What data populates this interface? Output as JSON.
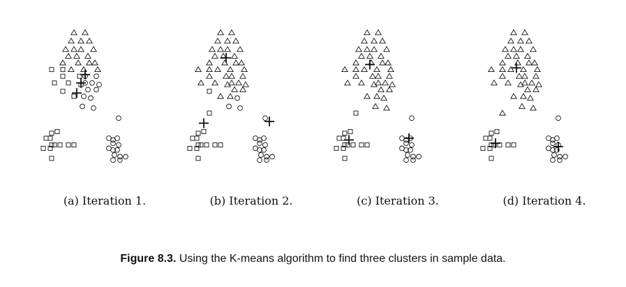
{
  "figure": {
    "caption_label": "Figure 8.3.",
    "caption_text": "Using the K-means algorithm to find three clusters in sample data.",
    "colors": {
      "ink": "#111111",
      "background": "#ffffff"
    }
  },
  "chart_data": [
    {
      "type": "scatter",
      "title": "(a) Iteration 1.",
      "xlim": [
        0,
        100
      ],
      "ylim": [
        0,
        100
      ],
      "grid": false,
      "axes_visible": false,
      "series": [
        {
          "marker": "triangle",
          "values": [
            [
              28,
              93
            ],
            [
              36,
              93
            ],
            [
              26,
              88
            ],
            [
              33,
              88
            ],
            [
              39,
              88
            ],
            [
              22,
              83
            ],
            [
              28,
              83
            ],
            [
              33,
              83
            ],
            [
              42,
              83
            ],
            [
              24,
              79
            ],
            [
              30,
              79
            ],
            [
              38,
              79
            ],
            [
              20,
              75
            ],
            [
              31,
              75
            ],
            [
              39,
              75
            ],
            [
              43,
              75
            ],
            [
              26,
              71
            ],
            [
              35,
              71
            ],
            [
              45,
              71
            ]
          ]
        },
        {
          "marker": "square",
          "values": [
            [
              12,
              71
            ],
            [
              20,
              71
            ],
            [
              20,
              67
            ],
            [
              32,
              67
            ],
            [
              14,
              63
            ],
            [
              24,
              63
            ],
            [
              33,
              62
            ],
            [
              20,
              58
            ],
            [
              28,
              55
            ],
            [
              12,
              33
            ],
            [
              16,
              34
            ],
            [
              8,
              30
            ],
            [
              11,
              30
            ],
            [
              12,
              26
            ],
            [
              18,
              26
            ],
            [
              24,
              26
            ],
            [
              28,
              26
            ],
            [
              6,
              24
            ],
            [
              11,
              24
            ],
            [
              14,
              26
            ],
            [
              12,
              18
            ]
          ]
        },
        {
          "marker": "circle",
          "values": [
            [
              36,
              67
            ],
            [
              44,
              67
            ],
            [
              36,
              63
            ],
            [
              41,
              63
            ],
            [
              46,
              62
            ],
            [
              38,
              59
            ],
            [
              44,
              59
            ],
            [
              35,
              55
            ],
            [
              40,
              54
            ],
            [
              34,
              49
            ],
            [
              42,
              48
            ],
            [
              60,
              42
            ],
            [
              53,
              30
            ],
            [
              56,
              29
            ],
            [
              59,
              30
            ],
            [
              56,
              27
            ],
            [
              60,
              26
            ],
            [
              53,
              24
            ],
            [
              56,
              23
            ],
            [
              59,
              23
            ],
            [
              57,
              20
            ],
            [
              61,
              19
            ],
            [
              65,
              19
            ],
            [
              56,
              17
            ],
            [
              61,
              17
            ]
          ]
        }
      ],
      "centroids": [
        [
          36,
          68
        ],
        [
          33,
          63
        ],
        [
          30,
          57
        ]
      ]
    },
    {
      "type": "scatter",
      "title": "(b) Iteration 2.",
      "xlim": [
        0,
        100
      ],
      "ylim": [
        0,
        100
      ],
      "grid": false,
      "axes_visible": false,
      "series": [
        {
          "marker": "triangle",
          "values": [
            [
              28,
              93
            ],
            [
              36,
              93
            ],
            [
              26,
              88
            ],
            [
              33,
              88
            ],
            [
              39,
              88
            ],
            [
              22,
              83
            ],
            [
              28,
              83
            ],
            [
              33,
              83
            ],
            [
              42,
              83
            ],
            [
              24,
              79
            ],
            [
              30,
              79
            ],
            [
              38,
              79
            ],
            [
              20,
              75
            ],
            [
              31,
              75
            ],
            [
              39,
              75
            ],
            [
              43,
              75
            ],
            [
              26,
              71
            ],
            [
              35,
              71
            ],
            [
              45,
              71
            ],
            [
              12,
              71
            ],
            [
              20,
              71
            ],
            [
              20,
              67
            ],
            [
              32,
              67
            ],
            [
              24,
              63
            ],
            [
              33,
              62
            ],
            [
              36,
              67
            ],
            [
              44,
              67
            ],
            [
              36,
              63
            ],
            [
              41,
              63
            ],
            [
              46,
              62
            ],
            [
              38,
              59
            ],
            [
              44,
              59
            ],
            [
              35,
              55
            ],
            [
              28,
              55
            ],
            [
              14,
              63
            ]
          ]
        },
        {
          "marker": "square",
          "values": [
            [
              20,
              58
            ],
            [
              20,
              45
            ],
            [
              12,
              33
            ],
            [
              16,
              34
            ],
            [
              8,
              30
            ],
            [
              11,
              30
            ],
            [
              12,
              26
            ],
            [
              18,
              26
            ],
            [
              24,
              26
            ],
            [
              28,
              26
            ],
            [
              6,
              24
            ],
            [
              11,
              24
            ],
            [
              14,
              26
            ],
            [
              12,
              18
            ]
          ]
        },
        {
          "marker": "circle",
          "values": [
            [
              40,
              54
            ],
            [
              34,
              49
            ],
            [
              42,
              48
            ],
            [
              60,
              42
            ],
            [
              53,
              30
            ],
            [
              56,
              29
            ],
            [
              59,
              30
            ],
            [
              56,
              27
            ],
            [
              60,
              26
            ],
            [
              53,
              24
            ],
            [
              56,
              23
            ],
            [
              59,
              23
            ],
            [
              57,
              20
            ],
            [
              61,
              19
            ],
            [
              65,
              19
            ],
            [
              56,
              17
            ],
            [
              61,
              17
            ]
          ]
        }
      ],
      "centroids": [
        [
          32,
          78
        ],
        [
          16,
          39
        ],
        [
          63,
          40
        ]
      ]
    },
    {
      "type": "scatter",
      "title": "(c) Iteration 3.",
      "xlim": [
        0,
        100
      ],
      "ylim": [
        0,
        100
      ],
      "grid": false,
      "axes_visible": false,
      "series": [
        {
          "marker": "triangle",
          "values": [
            [
              28,
              93
            ],
            [
              36,
              93
            ],
            [
              26,
              88
            ],
            [
              33,
              88
            ],
            [
              39,
              88
            ],
            [
              22,
              83
            ],
            [
              28,
              83
            ],
            [
              33,
              83
            ],
            [
              42,
              83
            ],
            [
              24,
              79
            ],
            [
              30,
              79
            ],
            [
              38,
              79
            ],
            [
              20,
              75
            ],
            [
              31,
              75
            ],
            [
              39,
              75
            ],
            [
              43,
              75
            ],
            [
              26,
              71
            ],
            [
              35,
              71
            ],
            [
              45,
              71
            ],
            [
              12,
              71
            ],
            [
              20,
              71
            ],
            [
              20,
              67
            ],
            [
              32,
              67
            ],
            [
              24,
              63
            ],
            [
              33,
              62
            ],
            [
              36,
              67
            ],
            [
              44,
              67
            ],
            [
              36,
              63
            ],
            [
              41,
              63
            ],
            [
              46,
              62
            ],
            [
              38,
              59
            ],
            [
              44,
              59
            ],
            [
              35,
              55
            ],
            [
              28,
              55
            ],
            [
              14,
              63
            ],
            [
              40,
              54
            ],
            [
              34,
              49
            ],
            [
              42,
              48
            ]
          ]
        },
        {
          "marker": "square",
          "values": [
            [
              20,
              45
            ],
            [
              12,
              33
            ],
            [
              16,
              34
            ],
            [
              8,
              30
            ],
            [
              11,
              30
            ],
            [
              12,
              26
            ],
            [
              18,
              26
            ],
            [
              24,
              26
            ],
            [
              28,
              26
            ],
            [
              6,
              24
            ],
            [
              11,
              24
            ],
            [
              14,
              26
            ],
            [
              12,
              18
            ]
          ]
        },
        {
          "marker": "circle",
          "values": [
            [
              60,
              42
            ],
            [
              53,
              30
            ],
            [
              56,
              29
            ],
            [
              59,
              30
            ],
            [
              56,
              27
            ],
            [
              60,
              26
            ],
            [
              53,
              24
            ],
            [
              56,
              23
            ],
            [
              59,
              23
            ],
            [
              57,
              20
            ],
            [
              61,
              19
            ],
            [
              65,
              19
            ],
            [
              56,
              17
            ],
            [
              61,
              17
            ]
          ]
        }
      ],
      "centroids": [
        [
          30,
          74
        ],
        [
          15,
          29
        ],
        [
          58,
          30
        ]
      ]
    },
    {
      "type": "scatter",
      "title": "(d) Iteration 4.",
      "xlim": [
        0,
        100
      ],
      "ylim": [
        0,
        100
      ],
      "grid": false,
      "axes_visible": false,
      "series": [
        {
          "marker": "triangle",
          "values": [
            [
              28,
              93
            ],
            [
              36,
              93
            ],
            [
              26,
              88
            ],
            [
              33,
              88
            ],
            [
              39,
              88
            ],
            [
              22,
              83
            ],
            [
              28,
              83
            ],
            [
              33,
              83
            ],
            [
              42,
              83
            ],
            [
              24,
              79
            ],
            [
              30,
              79
            ],
            [
              38,
              79
            ],
            [
              20,
              75
            ],
            [
              31,
              75
            ],
            [
              39,
              75
            ],
            [
              43,
              75
            ],
            [
              26,
              71
            ],
            [
              35,
              71
            ],
            [
              45,
              71
            ],
            [
              12,
              71
            ],
            [
              20,
              71
            ],
            [
              20,
              67
            ],
            [
              32,
              67
            ],
            [
              24,
              63
            ],
            [
              33,
              62
            ],
            [
              36,
              67
            ],
            [
              44,
              67
            ],
            [
              36,
              63
            ],
            [
              41,
              63
            ],
            [
              46,
              62
            ],
            [
              38,
              59
            ],
            [
              44,
              59
            ],
            [
              35,
              55
            ],
            [
              28,
              55
            ],
            [
              14,
              63
            ],
            [
              40,
              54
            ],
            [
              34,
              49
            ],
            [
              42,
              48
            ],
            [
              20,
              45
            ]
          ]
        },
        {
          "marker": "square",
          "values": [
            [
              12,
              33
            ],
            [
              16,
              34
            ],
            [
              8,
              30
            ],
            [
              11,
              30
            ],
            [
              12,
              26
            ],
            [
              18,
              26
            ],
            [
              24,
              26
            ],
            [
              28,
              26
            ],
            [
              6,
              24
            ],
            [
              11,
              24
            ],
            [
              14,
              26
            ],
            [
              12,
              18
            ]
          ]
        },
        {
          "marker": "circle",
          "values": [
            [
              60,
              42
            ],
            [
              53,
              30
            ],
            [
              56,
              29
            ],
            [
              59,
              30
            ],
            [
              56,
              27
            ],
            [
              60,
              26
            ],
            [
              53,
              24
            ],
            [
              56,
              23
            ],
            [
              59,
              23
            ],
            [
              57,
              20
            ],
            [
              61,
              19
            ],
            [
              65,
              19
            ],
            [
              56,
              17
            ],
            [
              61,
              17
            ]
          ]
        }
      ],
      "centroids": [
        [
          30,
          72
        ],
        [
          15,
          27
        ],
        [
          60,
          25
        ]
      ]
    }
  ]
}
